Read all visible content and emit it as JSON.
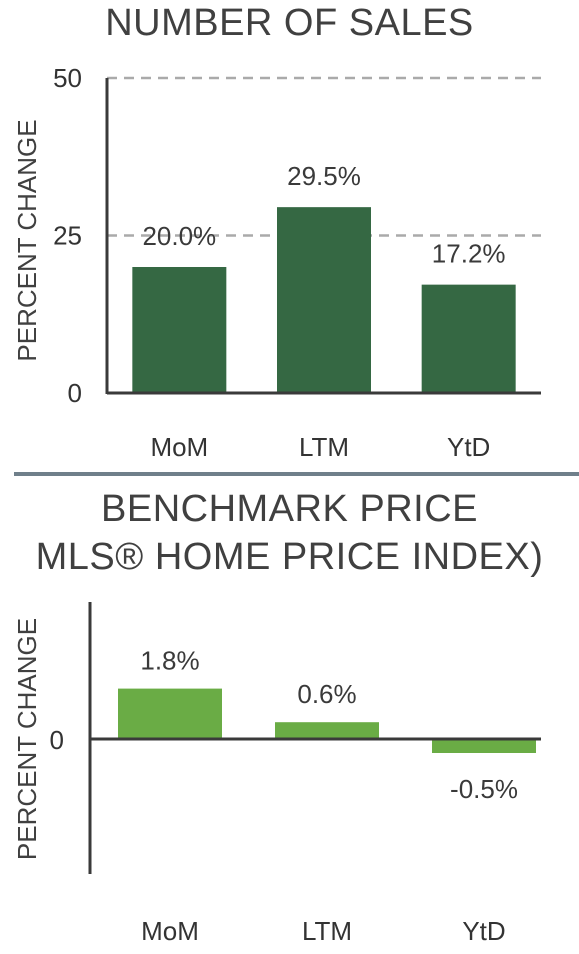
{
  "colors": {
    "sales_bar": "#356843",
    "benchmark_bar": "#6aac45",
    "axis": "#3a3a3a",
    "grid": "#aaaaaa",
    "divider": "#6f7f8a"
  },
  "chart_data": [
    {
      "type": "bar",
      "title": "NUMBER OF SALES",
      "ylabel": "PERCENT CHANGE",
      "xlabel": "",
      "categories": [
        "MoM",
        "LTM",
        "YtD"
      ],
      "values": [
        20.0,
        29.5,
        17.2
      ],
      "data_labels": [
        "20.0%",
        "29.5%",
        "17.2%"
      ],
      "ylim": [
        0,
        50
      ],
      "yticks": [
        0,
        25,
        50
      ],
      "grid": "dashed horizontal at 25 and 50"
    },
    {
      "type": "bar",
      "title_lines": [
        "BENCHMARK PRICE",
        "MLS® HOME PRICE INDEX)"
      ],
      "ylabel": "PERCENT CHANGE",
      "xlabel": "",
      "categories": [
        "MoM",
        "LTM",
        "YtD"
      ],
      "values": [
        1.8,
        0.6,
        -0.5
      ],
      "data_labels": [
        "1.8%",
        "0.6%",
        "-0.5%"
      ],
      "yticks": [
        0
      ],
      "grid": "none"
    }
  ]
}
